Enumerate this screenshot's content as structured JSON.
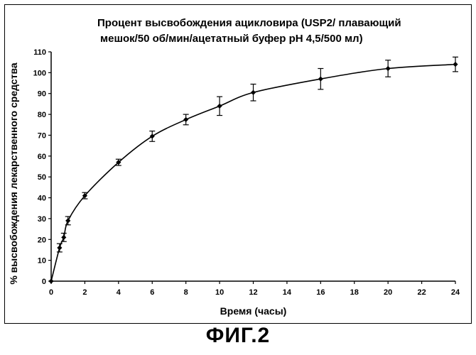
{
  "chart_data": {
    "type": "line",
    "title_lines": [
      "Процент высвобождения ацикловира (USP2/ плавающий",
      "мешок/50 об/мин/ацетатный буфер pH 4,5/500 мл)"
    ],
    "xlabel": "Время (часы)",
    "ylabel": "% высвобождения лекарственного средства",
    "xlim": [
      0,
      24
    ],
    "ylim": [
      0,
      110
    ],
    "x_ticks": [
      0,
      2,
      4,
      6,
      8,
      10,
      12,
      14,
      16,
      18,
      20,
      22,
      24
    ],
    "y_ticks": [
      0,
      10,
      20,
      30,
      40,
      50,
      60,
      70,
      80,
      90,
      100,
      110
    ],
    "grid": false,
    "series": [
      {
        "x": [
          0,
          0.5,
          0.75,
          1,
          2,
          4,
          6,
          8,
          10,
          12,
          16,
          20,
          24
        ],
        "y": [
          0,
          16,
          21,
          29,
          41,
          57,
          69.5,
          77.5,
          84,
          90.5,
          97,
          102,
          104
        ],
        "error": [
          0,
          2,
          2,
          2,
          1.5,
          1.5,
          2.5,
          2.5,
          4.5,
          4,
          5,
          4,
          3.5
        ],
        "color": "#000000",
        "marker": "diamond"
      }
    ]
  },
  "caption": "ФИГ.2"
}
